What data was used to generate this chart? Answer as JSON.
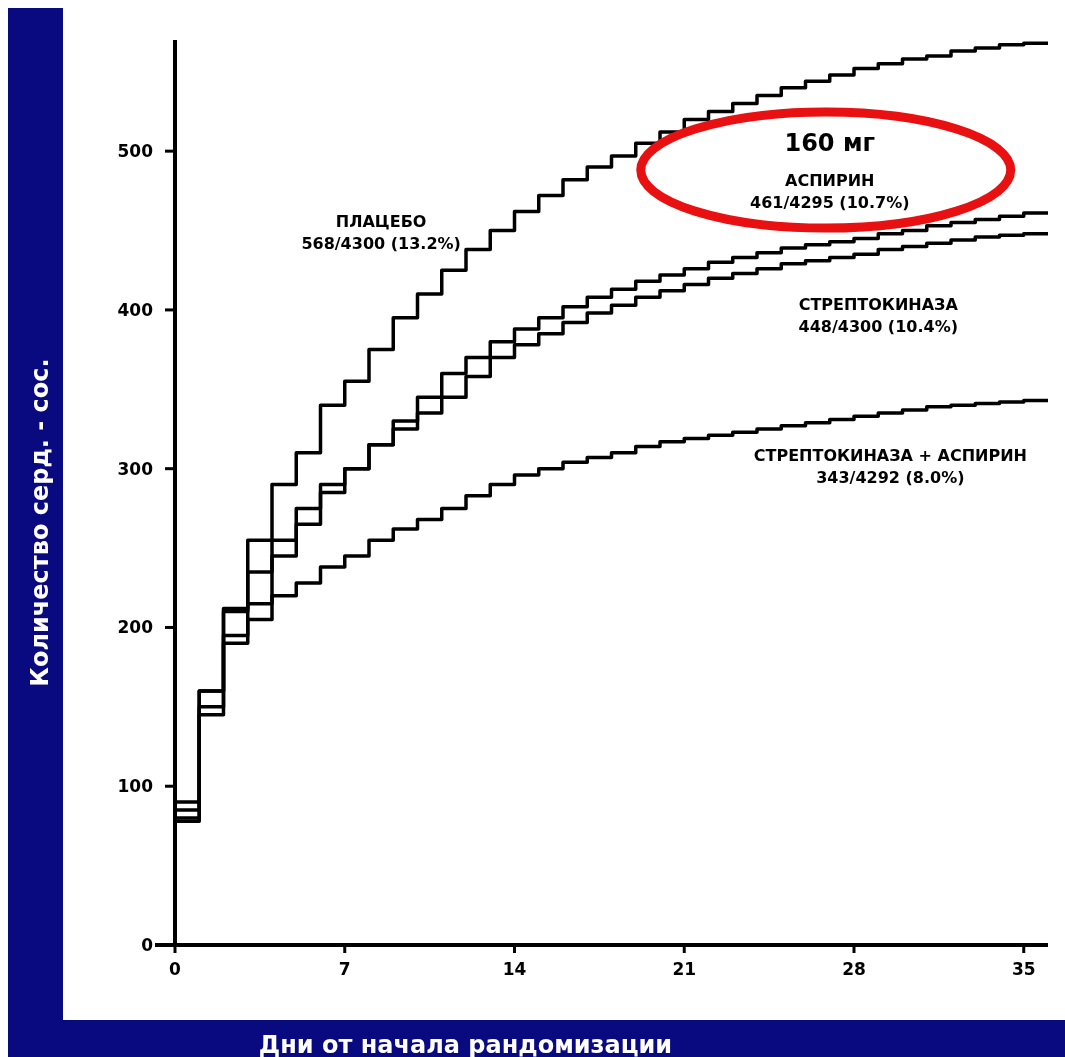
{
  "chart_data": {
    "type": "step",
    "xlabel": "Дни от начала рандомизации",
    "ylabel": "Количество серд. - сос.",
    "xlim": [
      0,
      36
    ],
    "ylim": [
      0,
      570
    ],
    "xticks": [
      0,
      7,
      14,
      21,
      28,
      35
    ],
    "yticks": [
      0,
      100,
      200,
      300,
      400,
      500
    ],
    "grid": false,
    "legend": false,
    "marker": "none",
    "line_style": "solid",
    "x": [
      0,
      1,
      2,
      3,
      4,
      5,
      6,
      7,
      8,
      9,
      10,
      11,
      12,
      13,
      14,
      15,
      16,
      17,
      18,
      19,
      20,
      21,
      22,
      23,
      24,
      25,
      26,
      27,
      28,
      29,
      30,
      31,
      32,
      33,
      34,
      35,
      36
    ],
    "series": [
      {
        "name": "ПЛАЦЕБО",
        "color": "#000000",
        "values": [
          90,
          160,
          212,
          255,
          290,
          310,
          340,
          355,
          375,
          395,
          410,
          425,
          438,
          450,
          462,
          472,
          482,
          490,
          497,
          505,
          512,
          520,
          525,
          530,
          535,
          540,
          544,
          548,
          552,
          555,
          558,
          560,
          563,
          565,
          567,
          568,
          568
        ]
      },
      {
        "name": "АСПИРИН",
        "color": "#000000",
        "values": [
          85,
          150,
          210,
          235,
          255,
          275,
          290,
          300,
          315,
          330,
          345,
          360,
          370,
          380,
          388,
          395,
          402,
          408,
          413,
          418,
          422,
          426,
          430,
          433,
          436,
          439,
          441,
          443,
          445,
          448,
          450,
          453,
          455,
          457,
          459,
          461,
          461
        ]
      },
      {
        "name": "СТРЕПТОКИНАЗА",
        "color": "#000000",
        "values": [
          80,
          160,
          195,
          215,
          245,
          265,
          285,
          300,
          315,
          325,
          335,
          345,
          358,
          370,
          378,
          385,
          392,
          398,
          403,
          408,
          412,
          416,
          420,
          423,
          426,
          429,
          431,
          433,
          435,
          438,
          440,
          442,
          444,
          446,
          447,
          448,
          448
        ]
      },
      {
        "name": "СТРЕПТОКИНАЗА + АСПИРИН",
        "color": "#000000",
        "values": [
          78,
          145,
          190,
          205,
          220,
          228,
          238,
          245,
          255,
          262,
          268,
          275,
          283,
          290,
          296,
          300,
          304,
          307,
          310,
          314,
          317,
          319,
          321,
          323,
          325,
          327,
          329,
          331,
          333,
          335,
          337,
          339,
          340,
          341,
          342,
          343,
          343
        ]
      }
    ],
    "annotations": [
      "568/4300 (13.2%)",
      "461/4295 (10.7%)",
      "448/4300 (10.4%)",
      "343/4292 (8.0%)",
      "160 мг"
    ]
  }
}
